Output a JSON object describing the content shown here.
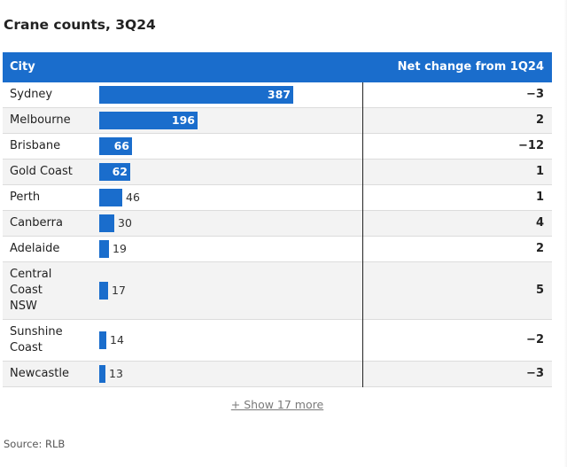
{
  "title": "Crane counts, 3Q24",
  "table": {
    "col_city": "City",
    "col_change": "Net change from 1Q24"
  },
  "show_more_label": "+ Show 17 more",
  "source": "Source: RLB",
  "colors": {
    "header_bg": "#1a6dcc",
    "bar": "#1a6dcc",
    "alt_row_bg": "#f3f3f3"
  },
  "chart_data": {
    "type": "table",
    "title": "Crane counts, 3Q24",
    "columns": [
      "City",
      "",
      "Net change from 1Q24"
    ],
    "rows": [
      {
        "city": "Sydney",
        "cranes": 387,
        "change": "−3"
      },
      {
        "city": "Melbourne",
        "cranes": 196,
        "change": "2"
      },
      {
        "city": "Brisbane",
        "cranes": 66,
        "change": "−12"
      },
      {
        "city": "Gold Coast",
        "cranes": 62,
        "change": "1"
      },
      {
        "city": "Perth",
        "cranes": 46,
        "change": "1"
      },
      {
        "city": "Canberra",
        "cranes": 30,
        "change": "4"
      },
      {
        "city": "Adelaide",
        "cranes": 19,
        "change": "2"
      },
      {
        "city": "Central Coast NSW",
        "cranes": 17,
        "change": "5"
      },
      {
        "city": "Sunshine Coast",
        "cranes": 14,
        "change": "−2"
      },
      {
        "city": "Newcastle",
        "cranes": 13,
        "change": "−3"
      }
    ],
    "bar_max": 387
  }
}
